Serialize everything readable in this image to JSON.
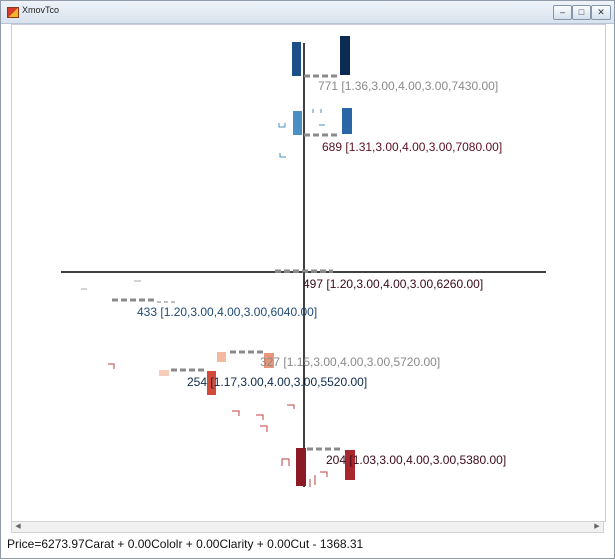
{
  "window": {
    "title": "XmovTco",
    "controls": {
      "minimize": "–",
      "maximize": "□",
      "close": "✕"
    },
    "icon": "app-icon"
  },
  "diagram": {
    "nodes": [
      {
        "id": "n771",
        "label": "771 [1.36,3.00,4.00,3.00,7430.00]",
        "color": "#8a8a8a"
      },
      {
        "id": "n689",
        "label": "689 [1.31,3.00,4.00,3.00,7080.00]",
        "color": "#5a1020"
      },
      {
        "id": "n497",
        "label": "497 [1.20,3.00,4.00,3.00,6260.00]",
        "color": "#3a0a18"
      },
      {
        "id": "n433",
        "label": "433 [1.20,3.00,4.00,3.00,6040.00]",
        "color": "#1f4a78"
      },
      {
        "id": "n327",
        "label": "327 [1.15,3.00,4.00,3.00,5720.00]",
        "color": "#8a8a8a"
      },
      {
        "id": "n254",
        "label": "254 [1.17,3.00,4.00,3.00,5520.00]",
        "color": "#0f2a4a"
      },
      {
        "id": "n204",
        "label": "204 [1.03,3.00,4.00,3.00,5380.00]",
        "color": "#3a0a18"
      }
    ]
  },
  "status": {
    "formula": "Price=6273.97Carat + 0.00Cololr + 0.00Clarity + 0.00Cut - 1368.31"
  }
}
